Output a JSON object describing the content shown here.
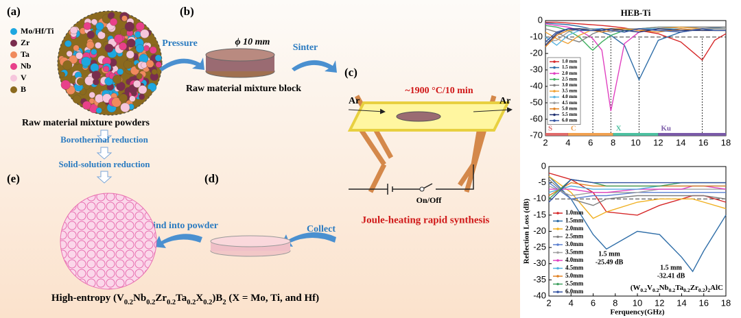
{
  "diagram": {
    "panels": [
      "(a)",
      "(b)",
      "(c)",
      "(d)",
      "(e)"
    ],
    "elements": [
      {
        "label": "Mo/Hf/Ti",
        "color": "#1ea7e0"
      },
      {
        "label": "Zr",
        "color": "#7a2d4e"
      },
      {
        "label": "Ta",
        "color": "#f08a5d"
      },
      {
        "label": "Nb",
        "color": "#e8408a"
      },
      {
        "label": "V",
        "color": "#f6c6dc"
      },
      {
        "label": "B",
        "color": "#8b6a1e"
      }
    ],
    "powder_label": "Raw material mixture powders",
    "pressure": "Pressure",
    "diameter": "ϕ 10 mm",
    "block_label": "Raw material mixture block",
    "sinter": "Sinter",
    "ar_in": "Ar",
    "ar_out": "Ar",
    "temperature": "~1900 °C/10 min",
    "switch": "On/Off",
    "joule": "Joule-heating rapid synthesis",
    "collect": "Collect",
    "grind": "Grind into powder",
    "steps": [
      "Borothermal reduction",
      "Solid-solution reduction"
    ],
    "caption": [
      "High-entropy (V",
      "0.2",
      "Nb",
      "0.2",
      "Zr",
      "0.2",
      "Ta",
      "0.2",
      "X",
      "0.2",
      ")B",
      "2",
      " (X = Mo, Ti, and Hf)"
    ]
  },
  "chart_data": [
    {
      "type": "line",
      "title": "HEB-Ti",
      "x": [
        2,
        3,
        4,
        5,
        6,
        6.2,
        7,
        7.8,
        9,
        10.3,
        12,
        14,
        15.9,
        17,
        18
      ],
      "xlim": [
        2,
        18
      ],
      "xticks": [
        2,
        4,
        6,
        8,
        10,
        12,
        14,
        16,
        18
      ],
      "ylim": [
        -70,
        0
      ],
      "yticks": [
        0,
        -10,
        -20,
        -30,
        -40,
        -50,
        -60,
        -70
      ],
      "legend": "lower left",
      "ref_x": [
        6.2,
        7.8,
        10.3,
        15.9
      ],
      "ref_y": -10,
      "bands": [
        {
          "label": "S",
          "from": 2,
          "to": 4,
          "color": "#e06a6a"
        },
        {
          "label": "C",
          "from": 4,
          "to": 8,
          "color": "#f0a050"
        },
        {
          "label": "X",
          "from": 8,
          "to": 12,
          "color": "#4cc0a0"
        },
        {
          "label": "Ku",
          "from": 12,
          "to": 18,
          "color": "#7a5aa8"
        }
      ],
      "series": [
        {
          "name": "1.0 mm",
          "color": "#d62728",
          "values": [
            -1,
            -1,
            -1.5,
            -2,
            -2.5,
            -2.6,
            -3,
            -3.5,
            -4.5,
            -6,
            -8,
            -13,
            -24,
            -12,
            -8
          ]
        },
        {
          "name": "1.5 mm",
          "color": "#2f6ea8",
          "values": [
            -1.5,
            -2,
            -2.5,
            -3.5,
            -5,
            -5.3,
            -7,
            -9,
            -15,
            -36,
            -12,
            -7,
            -5,
            -4.5,
            -4
          ]
        },
        {
          "name": "2.0 mm",
          "color": "#e040c0",
          "values": [
            -2,
            -3,
            -4,
            -6,
            -10,
            -11,
            -18,
            -55,
            -14,
            -7,
            -5,
            -4,
            -4,
            -4,
            -4
          ]
        },
        {
          "name": "2.5 mm",
          "color": "#40b060",
          "values": [
            -3,
            -4,
            -6,
            -10,
            -17,
            -18,
            -13,
            -9,
            -6,
            -5,
            -4,
            -4,
            -4,
            -4,
            -4
          ]
        },
        {
          "name": "3.0 mm",
          "color": "#7f7f7f",
          "values": [
            -5,
            -7,
            -11,
            -13,
            -9,
            -8,
            -6,
            -5,
            -5,
            -5,
            -4,
            -4,
            -4,
            -4,
            -4
          ]
        },
        {
          "name": "3.5 mm",
          "color": "#f0a030",
          "values": [
            -7,
            -11,
            -14,
            -9,
            -6,
            -6,
            -5,
            -5,
            -5,
            -6,
            -5,
            -4,
            -5,
            -5,
            -5
          ]
        },
        {
          "name": "4.0 mm",
          "color": "#5ab4e0",
          "values": [
            -10,
            -15,
            -9,
            -6,
            -5,
            -5,
            -5,
            -6,
            -7,
            -5,
            -5,
            -5,
            -6,
            -5,
            -5
          ]
        },
        {
          "name": "4.5 mm",
          "color": "#a0a0a0",
          "values": [
            -13,
            -12,
            -7,
            -5,
            -5,
            -5,
            -6,
            -7,
            -5,
            -5,
            -6,
            -6,
            -5,
            -5,
            -5
          ]
        },
        {
          "name": "5.0 mm",
          "color": "#e08020",
          "values": [
            -16,
            -9,
            -6,
            -5,
            -6,
            -6,
            -7,
            -6,
            -5,
            -6,
            -7,
            -5,
            -6,
            -6,
            -6
          ]
        },
        {
          "name": "5.5 mm",
          "color": "#203070",
          "values": [
            -15,
            -8,
            -5,
            -5,
            -6,
            -6,
            -6,
            -5,
            -6,
            -7,
            -5,
            -6,
            -6,
            -6,
            -6
          ]
        },
        {
          "name": "6.0 mm",
          "color": "#3050a0",
          "values": [
            -13,
            -7,
            -5,
            -6,
            -6,
            -6,
            -5,
            -6,
            -7,
            -5,
            -6,
            -7,
            -5,
            -6,
            -6
          ]
        }
      ]
    },
    {
      "type": "line",
      "x_label": "Ferquency(GHz)",
      "y_label": "Reflection Loss (dB)",
      "label": [
        "(W",
        "0.2",
        "V",
        "0.2",
        "Nb",
        "0.2",
        "Ta",
        "0.2",
        "Zr",
        "0.2",
        ")",
        "2",
        "AlC"
      ],
      "x": [
        2,
        4,
        6,
        7.2,
        10,
        12,
        14,
        15,
        16,
        18
      ],
      "xlim": [
        2,
        18
      ],
      "xticks": [
        2,
        4,
        6,
        8,
        10,
        12,
        14,
        16,
        18
      ],
      "ylim": [
        -40,
        0
      ],
      "yticks": [
        0,
        -5,
        -10,
        -15,
        -20,
        -25,
        -30,
        -35,
        -40
      ],
      "legend": "center left",
      "ref_y": -10,
      "annotations": [
        [
          "1.5 mm",
          "-25.49 dB"
        ],
        [
          "1.5 mm",
          "-32.41 dB"
        ]
      ],
      "series": [
        {
          "name": "1.0mm",
          "color": "#d62728",
          "values": [
            -2,
            -4,
            -8,
            -14,
            -15,
            -12,
            -10,
            -9,
            -9,
            -11
          ]
        },
        {
          "name": "1.5mm",
          "color": "#2f6ea8",
          "values": [
            -3,
            -10,
            -21,
            -25.49,
            -20,
            -21,
            -28,
            -32.41,
            -26,
            -15
          ]
        },
        {
          "name": "2.0mm",
          "color": "#f0b020",
          "values": [
            -3,
            -8,
            -16,
            -14,
            -11,
            -10,
            -10,
            -10,
            -11,
            -13
          ]
        },
        {
          "name": "2.5mm",
          "color": "#7f7f7f",
          "values": [
            -4,
            -10,
            -12,
            -10,
            -9,
            -9,
            -9,
            -9,
            -9,
            -10
          ]
        },
        {
          "name": "3.0mm",
          "color": "#5a7fd0",
          "values": [
            -5,
            -10,
            -9,
            -9,
            -8,
            -8,
            -8,
            -8,
            -8,
            -8
          ]
        },
        {
          "name": "3.5mm",
          "color": "#a0a0a0",
          "values": [
            -6,
            -9,
            -8,
            -8,
            -8,
            -7,
            -7,
            -7,
            -7,
            -7
          ]
        },
        {
          "name": "4.0mm",
          "color": "#e040c0",
          "values": [
            -7,
            -7,
            -8,
            -8,
            -7,
            -7,
            -7,
            -6,
            -6,
            -7
          ]
        },
        {
          "name": "4.5mm",
          "color": "#50b0e0",
          "values": [
            -8,
            -6,
            -7,
            -7,
            -7,
            -6,
            -6,
            -6,
            -6,
            -6
          ]
        },
        {
          "name": "5.0mm",
          "color": "#e08020",
          "values": [
            -9,
            -5,
            -6,
            -6,
            -6,
            -6,
            -6,
            -6,
            -6,
            -6
          ]
        },
        {
          "name": "5.5mm",
          "color": "#40a060",
          "values": [
            -10,
            -4,
            -5,
            -6,
            -6,
            -6,
            -5,
            -5,
            -5,
            -5
          ]
        },
        {
          "name": "6.0mm",
          "color": "#3050a0",
          "values": [
            -11,
            -4,
            -5,
            -5,
            -5,
            -5,
            -5,
            -5,
            -5,
            -5
          ]
        }
      ]
    }
  ]
}
